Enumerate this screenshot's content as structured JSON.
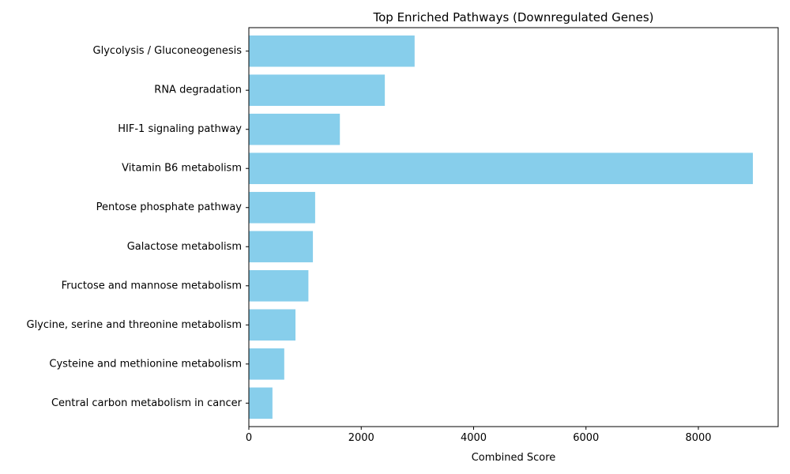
{
  "chart_data": {
    "type": "bar",
    "orientation": "horizontal",
    "title": "Top Enriched Pathways (Downregulated Genes)",
    "xlabel": "Combined Score",
    "ylabel": "",
    "xlim": [
      0,
      9420
    ],
    "xticks": [
      0,
      2000,
      4000,
      6000,
      8000
    ],
    "xtick_labels": [
      "0",
      "2000",
      "4000",
      "6000",
      "8000"
    ],
    "grid": false,
    "legend": "none",
    "bar_color": "#87ceeb",
    "categories": [
      "Glycolysis / Gluconeogenesis",
      "RNA degradation",
      "HIF-1 signaling pathway",
      "Vitamin B6 metabolism",
      "Pentose phosphate pathway",
      "Galactose metabolism",
      "Fructose and mannose metabolism",
      "Glycine, serine and threonine metabolism",
      "Cysteine and methionine metabolism",
      "Central carbon metabolism in cancer"
    ],
    "values": [
      2950,
      2420,
      1620,
      8970,
      1180,
      1140,
      1060,
      830,
      630,
      420
    ]
  }
}
